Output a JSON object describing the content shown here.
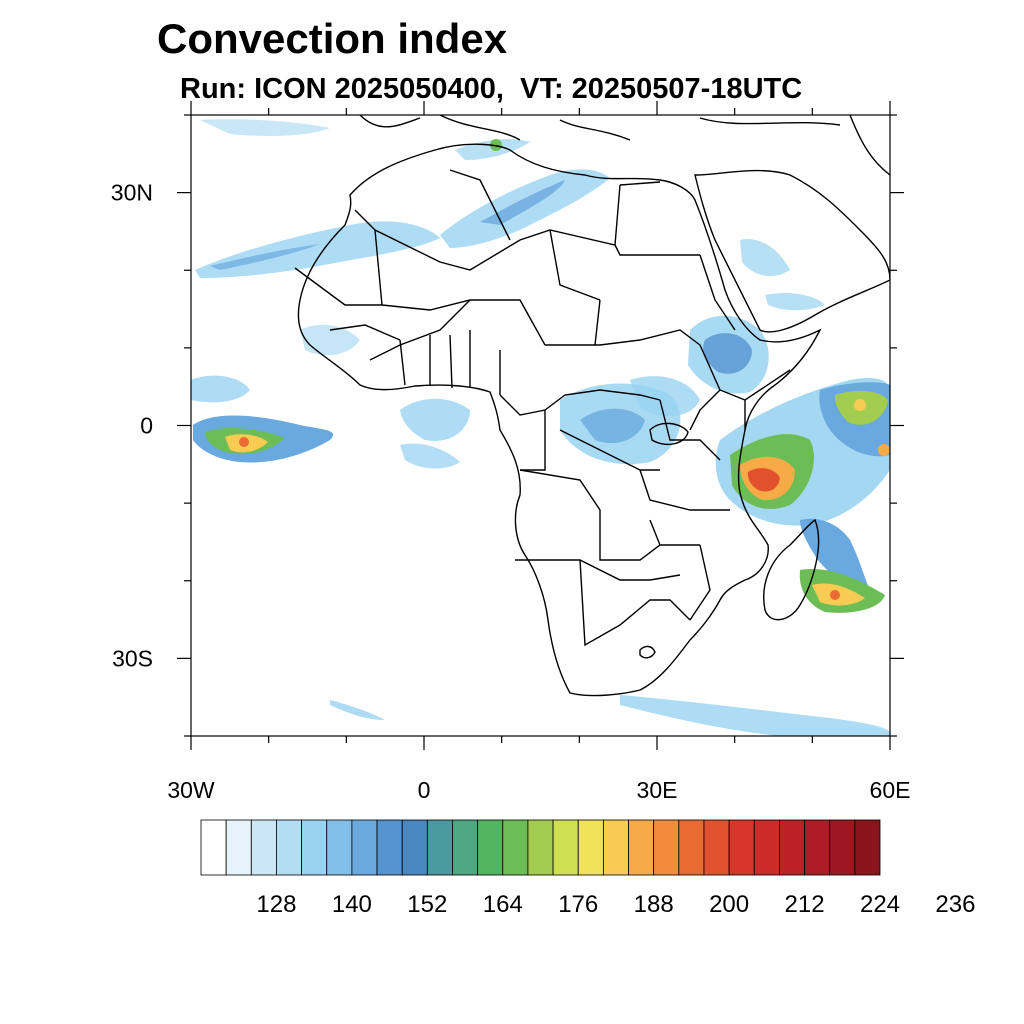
{
  "title": "Convection index",
  "subtitle": "Run: ICON 2025050400,  VT: 20250507-18UTC",
  "map": {
    "lon_range": [
      -30,
      60
    ],
    "lat_range": [
      -40,
      40
    ],
    "x_ticks": [
      {
        "value": -30,
        "label": "30W"
      },
      {
        "value": 0,
        "label": "0"
      },
      {
        "value": 30,
        "label": "30E"
      },
      {
        "value": 60,
        "label": "60E"
      }
    ],
    "y_ticks": [
      {
        "value": 30,
        "label": "30N"
      },
      {
        "value": 0,
        "label": "0"
      },
      {
        "value": -30,
        "label": "30S"
      }
    ]
  },
  "colorbar": {
    "colors": [
      "#ffffff",
      "#e6f3fb",
      "#cbe7f6",
      "#b2ddf3",
      "#99d3f1",
      "#82bfe8",
      "#6aa9df",
      "#5593cf",
      "#4a86bf",
      "#4a9aa0",
      "#4fa881",
      "#52b45f",
      "#6cbd55",
      "#a3cd4f",
      "#cfe050",
      "#f0e35a",
      "#f8cb53",
      "#f7ab46",
      "#f28c3d",
      "#ea6b32",
      "#e2512e",
      "#d9362b",
      "#cc2a2b",
      "#bd2029",
      "#ae1a26",
      "#9d1721",
      "#8a141c"
    ],
    "labels": [
      "128",
      "140",
      "152",
      "164",
      "176",
      "188",
      "200",
      "212",
      "224",
      "236"
    ]
  }
}
